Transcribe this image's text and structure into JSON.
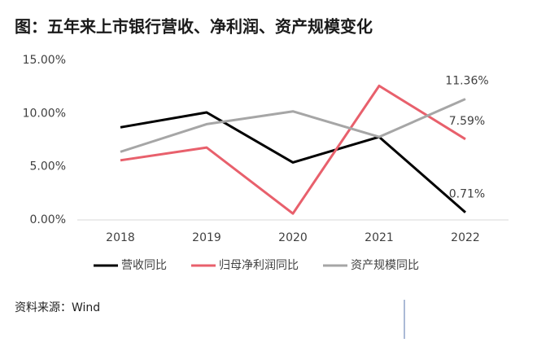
{
  "chart_data": {
    "type": "line",
    "title": "图：五年来上市银行营收、净利润、资产规模变化",
    "categories": [
      "2018",
      "2019",
      "2020",
      "2021",
      "2022"
    ],
    "series": [
      {
        "name": "营收同比",
        "color": "#000000",
        "values": [
          8.7,
          10.1,
          5.4,
          7.8,
          0.71
        ],
        "value_labels": [
          null,
          null,
          null,
          null,
          "0.71%"
        ]
      },
      {
        "name": "归母净利润同比",
        "color": "#e8606c",
        "values": [
          5.6,
          6.8,
          0.6,
          12.6,
          7.59
        ],
        "value_labels": [
          null,
          null,
          null,
          null,
          "7.59%"
        ]
      },
      {
        "name": "资产规模同比",
        "color": "#a6a6a6",
        "values": [
          6.4,
          9.0,
          10.2,
          7.8,
          11.36
        ],
        "value_labels": [
          null,
          null,
          null,
          null,
          "11.36%"
        ]
      }
    ],
    "ylim": [
      0,
      15
    ],
    "yticks": [
      {
        "value": 0,
        "label": "0.00%"
      },
      {
        "value": 5,
        "label": "5.00%"
      },
      {
        "value": 10,
        "label": "10.00%"
      },
      {
        "value": 15,
        "label": "15.00%"
      }
    ],
    "grid": false,
    "legend": "bottom",
    "source": "资料来源：Wind"
  }
}
